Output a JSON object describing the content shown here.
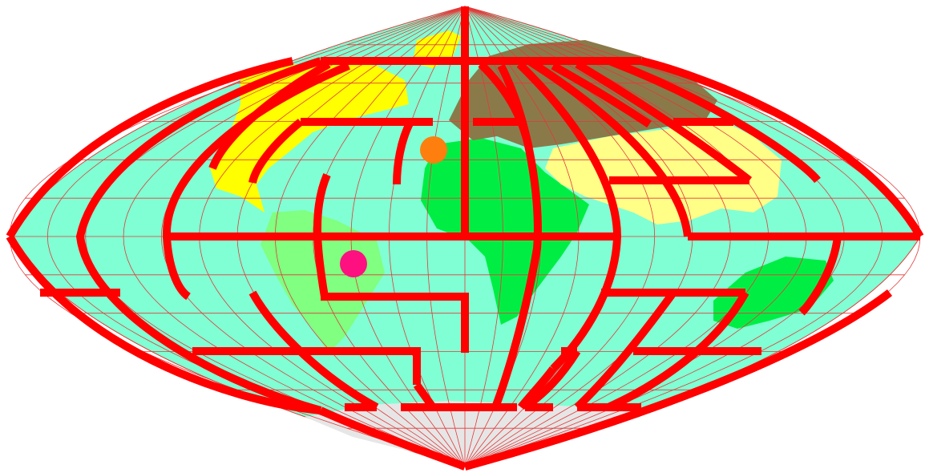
{
  "colors": {
    "ocean": "#80ffd4",
    "graticule": "#e23a3a",
    "maze_wall": "#ff0000",
    "north_america": "#ffff00",
    "greenland": "#ffff00",
    "south_america": "#80ff80",
    "africa": "#00ee44",
    "australia": "#00ee44",
    "europe": "#8a7a4a",
    "asia": "#ffff88",
    "antarctica": "#e6e6e6",
    "player_marker": "#ff1080",
    "goal_marker": "#ff7f0e"
  },
  "projection": "sinusoidal",
  "markers": [
    {
      "role": "player",
      "icon": "pink-circle",
      "color": "#ff1080"
    },
    {
      "role": "goal",
      "icon": "orange-circle",
      "color": "#ff7f0e"
    }
  ]
}
